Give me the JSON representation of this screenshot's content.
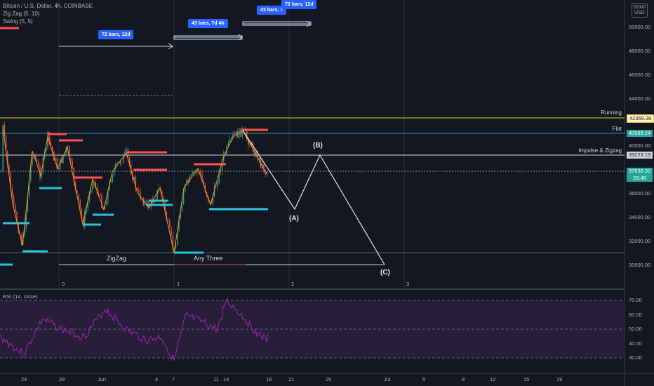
{
  "legend": {
    "symbol": "Bitcoin / U.S. Dollar, 4h, COINBASE",
    "indicator1": "Zig Zag (5, 10)",
    "indicator2": "Swing (5, 5)"
  },
  "currency": {
    "top": "52000",
    "unit": "USD"
  },
  "price_axis": [
    "50000.00",
    "48000.00",
    "46000.00",
    "44000.00",
    "40000.00",
    "36000.00",
    "34000.00",
    "32000.00",
    "30000.00"
  ],
  "price_tags": {
    "running": "42369.39",
    "flat": "40989.24",
    "impulse": "39223.19",
    "current": "37838.00",
    "countdown": "29:48"
  },
  "line_labels": {
    "running": "Running",
    "flat": "Flat",
    "impulse": "Impulse & Zigzag"
  },
  "badges": {
    "b1": "72 bars, 12d",
    "b2": "43 bars, 7d 4h",
    "b3": "43 bars, 7",
    "b4": "72 bars, 12d"
  },
  "annotations": {
    "zigzag": "ZigZag",
    "anythree": "Any Three"
  },
  "waves": {
    "A": "(A)",
    "B": "(B)",
    "C": "(C)"
  },
  "cycle_marks": [
    "0",
    "1",
    "2",
    "3"
  ],
  "rsi": {
    "title": "RSI (14, close)",
    "levels": [
      "70.00",
      "60.00",
      "50.00",
      "40.00",
      "30.00"
    ]
  },
  "time_axis": [
    "24",
    "28",
    "Jun",
    "4",
    "7",
    "11",
    "14",
    "18",
    "21",
    "25",
    "Jul",
    "5",
    "8",
    "12",
    "15",
    "19"
  ],
  "colors": {
    "background": "#131722",
    "up": "#26a69a",
    "down": "#ef5350",
    "swing_high": "#ff5252",
    "swing_low": "#26c6da",
    "rsi_line": "#9c27b0",
    "running": "#f0c040",
    "flat": "#26a69a"
  }
}
